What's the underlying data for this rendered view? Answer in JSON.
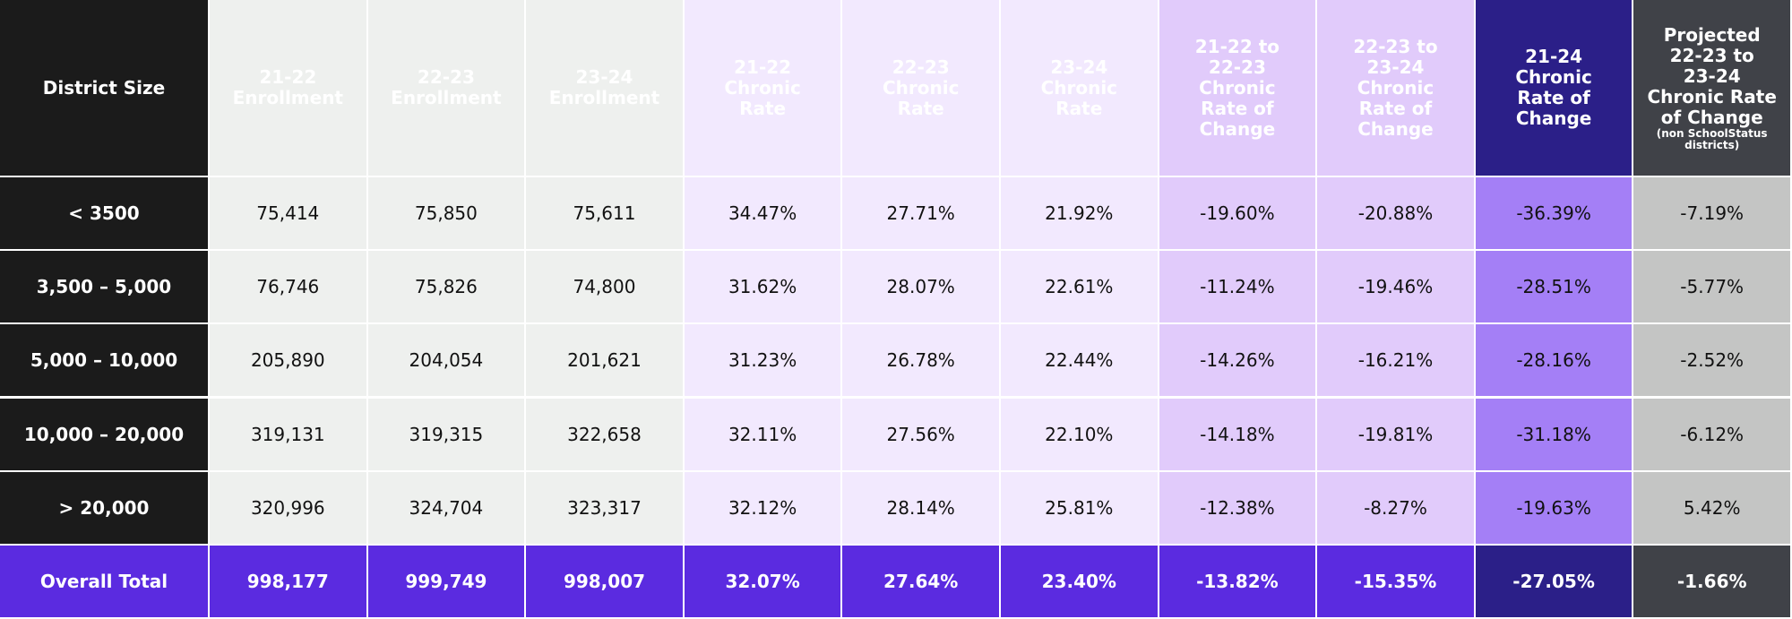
{
  "table": {
    "columns": [
      {
        "lines": [
          "District Size"
        ]
      },
      {
        "lines": [
          "21-22",
          "Enrollment"
        ]
      },
      {
        "lines": [
          "22-23",
          "Enrollment"
        ]
      },
      {
        "lines": [
          "23-24",
          "Enrollment"
        ]
      },
      {
        "lines": [
          "21-22",
          "Chronic",
          "Rate"
        ]
      },
      {
        "lines": [
          "22-23",
          "Chronic",
          "Rate"
        ]
      },
      {
        "lines": [
          "23-24",
          "Chronic",
          "Rate"
        ]
      },
      {
        "lines": [
          "21-22 to",
          "22-23",
          "Chronic",
          "Rate of",
          "Change"
        ]
      },
      {
        "lines": [
          "22-23 to",
          "23-24",
          "Chronic",
          "Rate of",
          "Change"
        ]
      },
      {
        "lines": [
          "21-24",
          "Chronic",
          "Rate of",
          "Change"
        ]
      },
      {
        "lines": [
          "Projected",
          "22-23 to",
          "23-24",
          "Chronic Rate",
          "of Change"
        ],
        "note": "(non SchoolStatus districts)"
      }
    ],
    "rows": [
      [
        "< 3500",
        "75,414",
        "75,850",
        "75,611",
        "34.47%",
        "27.71%",
        "21.92%",
        "-19.60%",
        "-20.88%",
        "-36.39%",
        "-7.19%"
      ],
      [
        "3,500 – 5,000",
        "76,746",
        "75,826",
        "74,800",
        "31.62%",
        "28.07%",
        "22.61%",
        "-11.24%",
        "-19.46%",
        "-28.51%",
        "-5.77%"
      ],
      [
        "5,000 – 10,000",
        "205,890",
        "204,054",
        "201,621",
        "31.23%",
        "26.78%",
        "22.44%",
        "-14.26%",
        "-16.21%",
        "-28.16%",
        "-2.52%"
      ],
      [
        "10,000 – 20,000",
        "319,131",
        "319,315",
        "322,658",
        "32.11%",
        "27.56%",
        "22.10%",
        "-14.18%",
        "-19.81%",
        "-31.18%",
        "-6.12%"
      ],
      [
        "> 20,000",
        "320,996",
        "324,704",
        "323,317",
        "32.12%",
        "28.14%",
        "25.81%",
        "-12.38%",
        "-8.27%",
        "-19.63%",
        "5.42%"
      ],
      [
        "Overall Total",
        "998,177",
        "999,749",
        "998,007",
        "32.07%",
        "27.64%",
        "23.40%",
        "-13.82%",
        "-15.35%",
        "-27.05%",
        "-1.66%"
      ]
    ]
  }
}
